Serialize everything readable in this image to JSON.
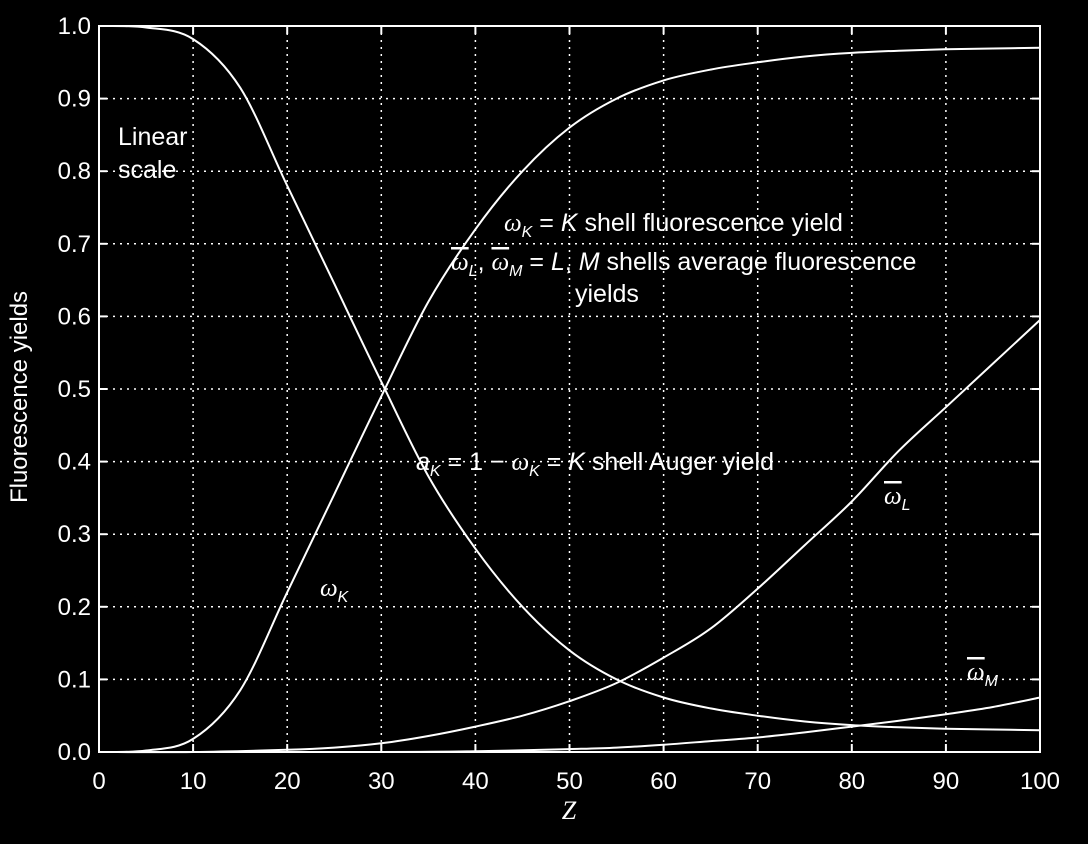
{
  "chart_data": {
    "type": "line",
    "title": "",
    "xlabel": "Z",
    "ylabel": "Fluorescence yields",
    "xlim": [
      0,
      100
    ],
    "ylim": [
      0.0,
      1.0
    ],
    "x_ticks": [
      "0",
      "10",
      "20",
      "30",
      "40",
      "50",
      "60",
      "70",
      "80",
      "90",
      "100"
    ],
    "y_ticks": [
      "0.0",
      "0.1",
      "0.2",
      "0.3",
      "0.4",
      "0.5",
      "0.6",
      "0.7",
      "0.8",
      "0.9",
      "1.0"
    ],
    "grid": true,
    "grid_style": "dotted",
    "colors": {
      "background": "#000000",
      "foreground": "#ffffff"
    },
    "series": [
      {
        "key": "omega_K",
        "x": [
          0,
          5,
          10,
          15,
          20,
          25,
          30,
          35,
          40,
          45,
          50,
          55,
          60,
          65,
          70,
          75,
          80,
          85,
          90,
          95,
          100
        ],
        "values": [
          0.0,
          0.002,
          0.018,
          0.085,
          0.22,
          0.355,
          0.49,
          0.62,
          0.72,
          0.8,
          0.86,
          0.9,
          0.925,
          0.94,
          0.95,
          0.958,
          0.963,
          0.966,
          0.968,
          0.969,
          0.97
        ]
      },
      {
        "key": "a_K",
        "x": [
          0,
          5,
          10,
          15,
          20,
          25,
          30,
          35,
          40,
          45,
          50,
          55,
          60,
          65,
          70,
          75,
          80,
          85,
          90,
          95,
          100
        ],
        "values": [
          1.0,
          0.998,
          0.982,
          0.915,
          0.78,
          0.645,
          0.51,
          0.38,
          0.28,
          0.2,
          0.14,
          0.1,
          0.075,
          0.06,
          0.05,
          0.042,
          0.037,
          0.034,
          0.032,
          0.031,
          0.03
        ]
      },
      {
        "key": "omega_L",
        "x": [
          0,
          10,
          20,
          25,
          30,
          35,
          40,
          45,
          50,
          55,
          60,
          65,
          70,
          75,
          80,
          85,
          90,
          95,
          100
        ],
        "values": [
          0.0,
          0.0,
          0.003,
          0.006,
          0.012,
          0.022,
          0.035,
          0.05,
          0.07,
          0.095,
          0.13,
          0.17,
          0.225,
          0.285,
          0.345,
          0.415,
          0.475,
          0.535,
          0.595
        ]
      },
      {
        "key": "omega_M",
        "x": [
          0,
          30,
          40,
          50,
          55,
          60,
          65,
          70,
          75,
          80,
          85,
          90,
          95,
          100
        ],
        "values": [
          0.0,
          0.0,
          0.001,
          0.004,
          0.006,
          0.01,
          0.015,
          0.02,
          0.027,
          0.035,
          0.043,
          0.052,
          0.062,
          0.075
        ]
      }
    ],
    "annotations": {
      "scale": [
        "Linear",
        "scale"
      ],
      "defK": {
        "omega": "ω",
        "sub": "K",
        "mid": " = ",
        "K": "K",
        "rest": " shell fluorescence yield"
      },
      "defLM": {
        "omega": "ω",
        "subL": "L",
        "comma": ", ",
        "subM": "M",
        "mid": " = ",
        "L": "L",
        "sep": ", ",
        "M": "M",
        "rest": " shells average fluorescence",
        "line2": "yields"
      },
      "auger": {
        "a": "a",
        "sub": "K",
        "mid": " = 1 − ",
        "omega": "ω",
        "sub2": "K",
        "mid2": " = ",
        "K": "K",
        "rest": " shell Auger yield"
      },
      "labelK": {
        "omega": "ω",
        "sub": "K"
      },
      "labelL": {
        "omega": "ω",
        "sub": "L"
      },
      "labelM": {
        "omega": "ω",
        "sub": "M"
      }
    }
  }
}
